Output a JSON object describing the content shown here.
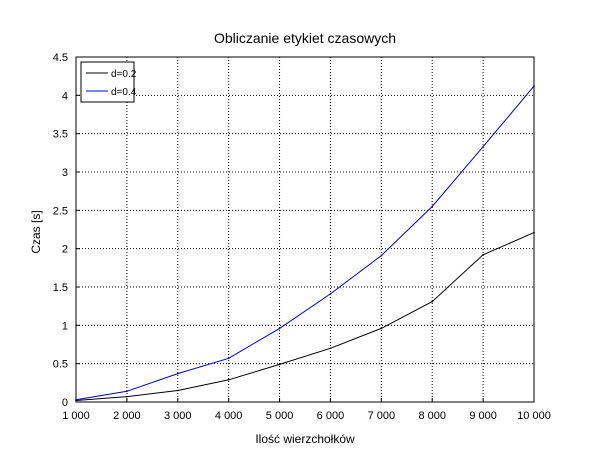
{
  "chart_data": {
    "type": "line",
    "title": "Obliczanie etykiet czasowych",
    "xlabel": "Ilość wierzchołków",
    "ylabel": "Czas [s]",
    "xlim": [
      1000,
      10000
    ],
    "ylim": [
      0,
      4.5
    ],
    "grid": true,
    "legend_position": "top-left",
    "x": [
      1000,
      2000,
      3000,
      4000,
      5000,
      6000,
      7000,
      8000,
      9000,
      10000
    ],
    "x_tick_labels": [
      "1 000",
      "2 000",
      "3 000",
      "4 000",
      "5 000",
      "6 000",
      "7 000",
      "8 000",
      "9 000",
      "10 000"
    ],
    "y_ticks": [
      0,
      0.5,
      1,
      1.5,
      2,
      2.5,
      3,
      3.5,
      4,
      4.5
    ],
    "y_tick_labels": [
      "0",
      "0.5",
      "1",
      "1.5",
      "2",
      "2.5",
      "3",
      "3.5",
      "4",
      "4.5"
    ],
    "series": [
      {
        "name": "d=0.2",
        "color": "#000000",
        "values": [
          0.02,
          0.07,
          0.15,
          0.29,
          0.49,
          0.7,
          0.96,
          1.31,
          1.92,
          2.21
        ]
      },
      {
        "name": "d=0.4",
        "color": "#0000cc",
        "values": [
          0.03,
          0.14,
          0.37,
          0.57,
          0.96,
          1.41,
          1.91,
          2.55,
          3.33,
          4.12
        ]
      }
    ]
  }
}
